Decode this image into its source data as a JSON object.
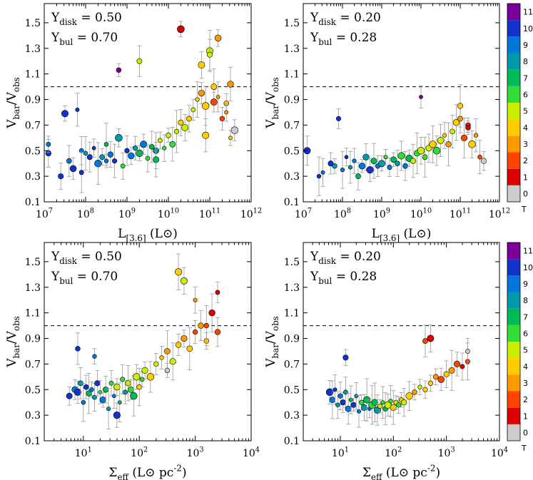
{
  "chart_data": [
    {
      "id": "top-left",
      "type": "scatter",
      "xlabel": "L_[3.6] (L_⊙)",
      "ylabel": "V_bar/V_obs",
      "xscale": "log",
      "xlim": [
        10000000,
        1000000000000
      ],
      "ylim": [
        0.1,
        1.65
      ],
      "xticks": [
        "10^7",
        "10^8",
        "10^9",
        "10^10",
        "10^11",
        "10^12"
      ],
      "yticks": [
        "0.1",
        "0.3",
        "0.5",
        "0.7",
        "0.9",
        "1.1",
        "1.3",
        "1.5"
      ],
      "reference_line": 1.0,
      "annotations": [
        "Υ_disk = 0.50",
        "Υ_bul = 0.70"
      ],
      "points_x_log": [
        7.1,
        7.1,
        7.4,
        7.5,
        7.6,
        7.7,
        7.8,
        7.9,
        8.0,
        8.1,
        8.2,
        8.3,
        8.4,
        8.5,
        8.6,
        8.7,
        8.8,
        8.9,
        9.0,
        9.1,
        9.2,
        9.3,
        9.4,
        9.5,
        9.6,
        9.7,
        9.8,
        9.9,
        10.0,
        10.1,
        10.2,
        10.3,
        10.4,
        10.5,
        10.6,
        10.7,
        10.8,
        10.9,
        11.0,
        11.1,
        11.2,
        11.3,
        11.4,
        11.5,
        11.6,
        8.8,
        9.3,
        10.3,
        10.8,
        11.0,
        11.2,
        7.9,
        8.5,
        9.7,
        10.9,
        11.1,
        11.4,
        11.5
      ],
      "points_y": [
        0.48,
        0.55,
        0.3,
        0.79,
        0.42,
        0.36,
        0.82,
        0.5,
        0.48,
        0.45,
        0.52,
        0.4,
        0.45,
        0.55,
        0.47,
        0.42,
        0.6,
        0.38,
        0.5,
        0.46,
        0.52,
        0.48,
        0.55,
        0.44,
        0.53,
        0.5,
        0.58,
        0.52,
        0.62,
        0.55,
        0.65,
        0.72,
        0.68,
        0.75,
        0.82,
        0.9,
        0.95,
        0.85,
        1.28,
        1.0,
        0.92,
        0.75,
        0.87,
        1.02,
        0.66,
        1.13,
        1.2,
        1.45,
        1.17,
        1.25,
        1.38,
        0.33,
        0.42,
        0.43,
        0.62,
        0.88,
        0.8,
        0.6
      ],
      "points_T": [
        10,
        9,
        10,
        10,
        9,
        10,
        10,
        9,
        8,
        10,
        10,
        9,
        8,
        7,
        9,
        10,
        8,
        6,
        10,
        9,
        8,
        7,
        9,
        6,
        7,
        8,
        5,
        6,
        5,
        6,
        5,
        4,
        5,
        4,
        5,
        4,
        3,
        4,
        5,
        4,
        3,
        2,
        4,
        3,
        0,
        11,
        5,
        1,
        4,
        5,
        3,
        10,
        9,
        7,
        4,
        2,
        3,
        4
      ]
    },
    {
      "id": "top-right",
      "type": "scatter",
      "xlabel": "L_[3.6] (L_⊙)",
      "ylabel": "V_bar/V_obs",
      "xscale": "log",
      "xlim": [
        10000000,
        1000000000000
      ],
      "ylim": [
        0.1,
        1.65
      ],
      "xticks": [
        "10^7",
        "10^8",
        "10^9",
        "10^10",
        "10^11",
        "10^12"
      ],
      "yticks": [
        "0.1",
        "0.3",
        "0.5",
        "0.7",
        "0.9",
        "1.1",
        "1.3",
        "1.5"
      ],
      "reference_line": 1.0,
      "annotations": [
        "Υ_disk = 0.20",
        "Υ_bul = 0.28"
      ],
      "points_x_log": [
        7.1,
        7.4,
        7.5,
        7.7,
        7.8,
        7.9,
        8.0,
        8.1,
        8.2,
        8.3,
        8.4,
        8.5,
        8.6,
        8.7,
        8.8,
        8.9,
        9.0,
        9.1,
        9.2,
        9.3,
        9.4,
        9.5,
        9.6,
        9.7,
        9.8,
        9.9,
        10.0,
        10.1,
        10.2,
        10.3,
        10.4,
        10.5,
        10.6,
        10.7,
        10.8,
        10.9,
        11.0,
        11.1,
        11.2,
        11.3,
        11.4,
        11.5,
        11.6,
        10.0,
        11.0,
        11.2
      ],
      "points_y": [
        0.5,
        0.3,
        0.33,
        0.4,
        0.38,
        0.75,
        0.35,
        0.45,
        0.37,
        0.42,
        0.3,
        0.38,
        0.45,
        0.35,
        0.42,
        0.38,
        0.4,
        0.45,
        0.37,
        0.43,
        0.4,
        0.46,
        0.38,
        0.44,
        0.42,
        0.48,
        0.5,
        0.45,
        0.52,
        0.55,
        0.5,
        0.58,
        0.62,
        0.55,
        0.65,
        0.72,
        0.75,
        0.6,
        0.7,
        0.55,
        0.62,
        0.45,
        0.42,
        0.92,
        0.85,
        0.68
      ],
      "points_T": [
        10,
        10,
        9,
        10,
        8,
        10,
        9,
        10,
        8,
        9,
        7,
        9,
        8,
        10,
        7,
        9,
        8,
        6,
        9,
        7,
        8,
        6,
        9,
        7,
        5,
        6,
        5,
        6,
        5,
        4,
        6,
        5,
        4,
        3,
        5,
        4,
        3,
        2,
        1,
        4,
        3,
        2,
        0,
        11,
        4,
        1
      ]
    },
    {
      "id": "bottom-left",
      "type": "scatter",
      "xlabel": "Σ_eff (L_⊙ pc^-2)",
      "ylabel": "V_bar/V_obs",
      "xscale": "log",
      "xlim": [
        2,
        10000
      ],
      "ylim": [
        0.1,
        1.65
      ],
      "xticks": [
        "10^1",
        "10^2",
        "10^3",
        "10^4"
      ],
      "yticks": [
        "0.1",
        "0.3",
        "0.5",
        "0.7",
        "0.9",
        "1.1",
        "1.3",
        "1.5"
      ],
      "reference_line": 1.0,
      "annotations": [
        "Υ_disk = 0.50",
        "Υ_bul = 0.70"
      ],
      "points_x_log": [
        0.75,
        0.85,
        0.9,
        0.95,
        1.0,
        1.05,
        1.1,
        1.15,
        1.2,
        1.25,
        1.3,
        1.35,
        1.4,
        1.45,
        1.5,
        1.55,
        1.6,
        1.65,
        1.7,
        1.75,
        1.8,
        1.85,
        1.9,
        1.95,
        2.0,
        2.05,
        2.1,
        2.2,
        2.3,
        2.4,
        2.5,
        2.6,
        2.7,
        2.8,
        2.9,
        3.0,
        3.1,
        3.2,
        3.3,
        3.4,
        0.9,
        1.2,
        1.6,
        2.7,
        2.8,
        3.0,
        3.2,
        3.4,
        2.5
      ],
      "points_y": [
        0.45,
        0.5,
        0.48,
        0.55,
        0.4,
        0.52,
        0.47,
        0.5,
        0.44,
        0.55,
        0.48,
        0.42,
        0.5,
        0.35,
        0.55,
        0.45,
        0.52,
        0.4,
        0.58,
        0.48,
        0.55,
        0.5,
        0.45,
        0.6,
        0.52,
        0.58,
        0.65,
        0.6,
        0.7,
        0.75,
        0.8,
        0.72,
        0.85,
        0.9,
        0.82,
        0.95,
        1.0,
        0.88,
        1.1,
        0.95,
        0.82,
        0.76,
        0.3,
        1.42,
        1.35,
        1.2,
        1.0,
        1.26,
        0.65
      ],
      "points_T": [
        10,
        9,
        10,
        8,
        9,
        10,
        7,
        9,
        8,
        10,
        6,
        9,
        7,
        8,
        6,
        9,
        5,
        7,
        6,
        8,
        5,
        6,
        7,
        5,
        4,
        6,
        5,
        4,
        5,
        4,
        3,
        5,
        4,
        3,
        4,
        2,
        3,
        4,
        1,
        2,
        10,
        9,
        10,
        4,
        5,
        3,
        2,
        1,
        0
      ]
    },
    {
      "id": "bottom-right",
      "type": "scatter",
      "xlabel": "Σ_eff (L_⊙ pc^-2)",
      "ylabel": "V_bar/V_obs",
      "xscale": "log",
      "xlim": [
        2,
        10000
      ],
      "ylim": [
        0.1,
        1.65
      ],
      "xticks": [
        "10^1",
        "10^2",
        "10^3",
        "10^4"
      ],
      "yticks": [
        "0.1",
        "0.3",
        "0.5",
        "0.7",
        "0.9",
        "1.1",
        "1.3",
        "1.5"
      ],
      "reference_line": 1.0,
      "annotations": [
        "Υ_disk = 0.20",
        "Υ_bul = 0.28"
      ],
      "points_x_log": [
        0.8,
        0.85,
        0.9,
        0.95,
        1.0,
        1.05,
        1.1,
        1.15,
        1.2,
        1.25,
        1.3,
        1.35,
        1.4,
        1.45,
        1.5,
        1.55,
        1.6,
        1.65,
        1.7,
        1.75,
        1.8,
        1.85,
        1.9,
        1.95,
        2.0,
        2.05,
        2.1,
        2.15,
        2.2,
        2.3,
        2.4,
        2.5,
        2.6,
        2.7,
        2.8,
        2.9,
        3.0,
        3.1,
        3.2,
        3.3,
        3.4,
        2.6,
        2.7,
        1.1,
        3.4
      ],
      "points_y": [
        0.48,
        0.42,
        0.5,
        0.38,
        0.45,
        0.4,
        0.48,
        0.35,
        0.42,
        0.38,
        0.45,
        0.33,
        0.4,
        0.36,
        0.42,
        0.35,
        0.38,
        0.4,
        0.34,
        0.37,
        0.4,
        0.35,
        0.38,
        0.41,
        0.36,
        0.4,
        0.38,
        0.42,
        0.4,
        0.45,
        0.48,
        0.52,
        0.5,
        0.55,
        0.6,
        0.58,
        0.62,
        0.65,
        0.7,
        0.68,
        0.72,
        0.88,
        0.9,
        0.75,
        0.8
      ],
      "points_T": [
        10,
        9,
        10,
        8,
        9,
        10,
        8,
        9,
        7,
        10,
        8,
        9,
        6,
        8,
        7,
        9,
        6,
        7,
        8,
        5,
        6,
        7,
        5,
        6,
        4,
        5,
        6,
        4,
        5,
        4,
        3,
        5,
        4,
        4,
        3,
        2,
        4,
        3,
        2,
        1,
        2,
        2,
        1,
        10,
        0
      ]
    }
  ],
  "colorbar": {
    "label": "T",
    "ticks": [
      "0",
      "1",
      "2",
      "3",
      "4",
      "5",
      "6",
      "7",
      "8",
      "9",
      "10",
      "11"
    ],
    "colors": [
      "#cccccc",
      "#dd0000",
      "#ff4400",
      "#ff9900",
      "#ffcc00",
      "#ccee00",
      "#33dd33",
      "#00bb55",
      "#0099aa",
      "#0077dd",
      "#1133cc",
      "#7a0099"
    ]
  }
}
